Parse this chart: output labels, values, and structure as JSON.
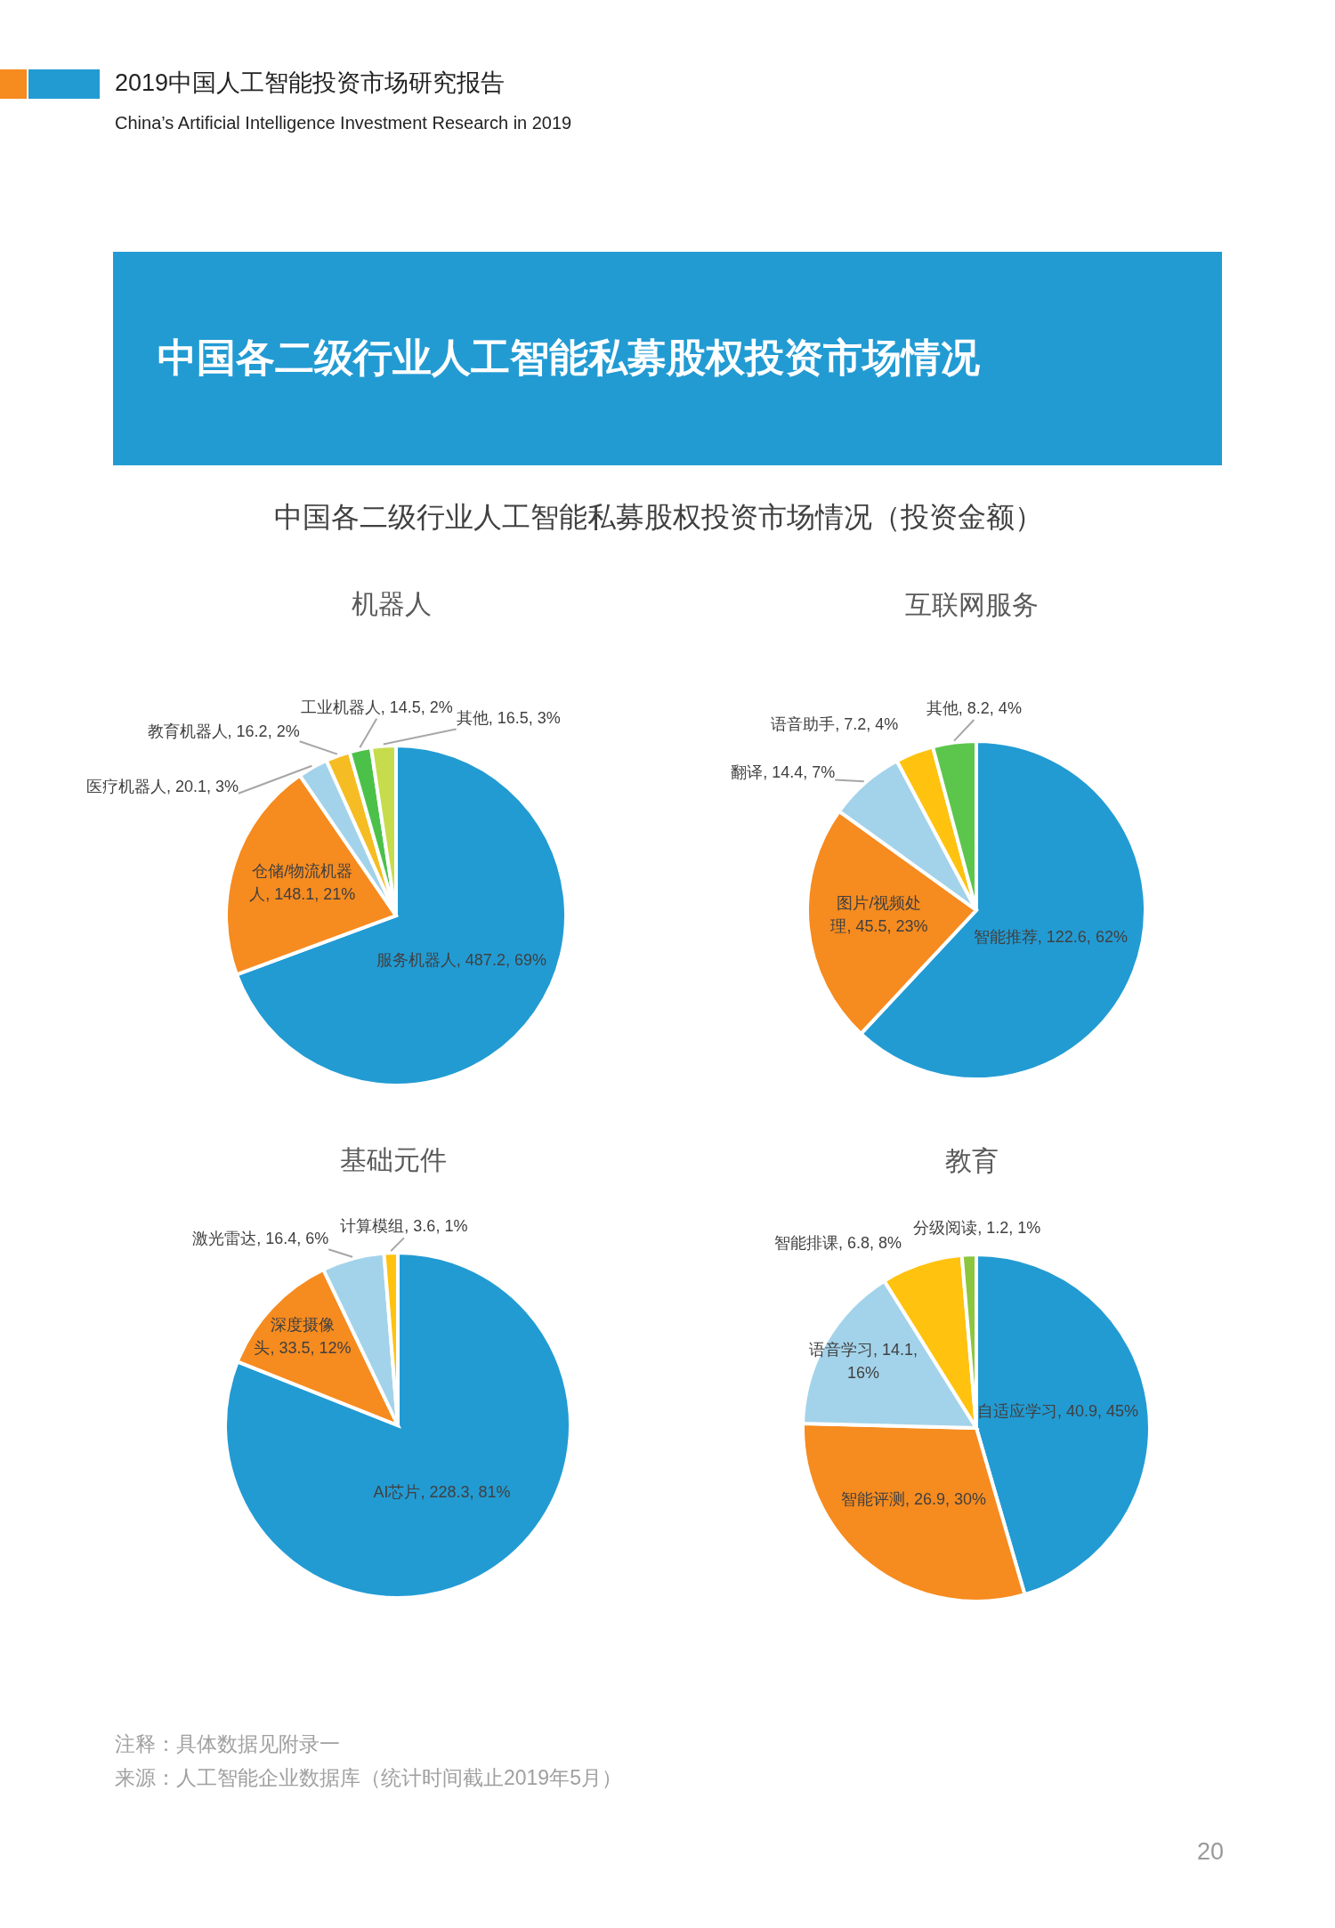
{
  "chart_data": [
    {
      "type": "other",
      "title": "中国各二级行业人工智能私募股权投资市场情况",
      "subtitle": "中国各二级行业人工智能私募股权投资市场情况（投资金额）",
      "annotations": [
        "2019中国人工智能投资市场研究报告",
        "China’s Artificial Intelligence Investment Research in 2019"
      ]
    },
    {
      "type": "pie",
      "title": "机器人",
      "categories": [
        "服务机器人",
        "仓储/物流机器人",
        "医疗机器人",
        "教育机器人",
        "工业机器人",
        "其他"
      ],
      "values": [
        487.2,
        148.1,
        20.1,
        16.2,
        14.5,
        16.5
      ],
      "colors": [
        "#229bd3",
        "#f68b1f",
        "#a3d3ea",
        "#f5bd23",
        "#4cc14a",
        "#c6dc4c"
      ],
      "value_labels": [
        "487.2, 69%",
        "148.1, 21%",
        "20.1, 3%",
        "16.2, 2%",
        "14.5, 2%",
        "16.5, 3%"
      ]
    },
    {
      "type": "pie",
      "title": "互联网服务",
      "categories": [
        "智能推荐",
        "图片/视频处理",
        "翻译",
        "语音助手",
        "其他"
      ],
      "values": [
        122.6,
        45.5,
        14.4,
        7.2,
        8.2
      ],
      "colors": [
        "#229bd3",
        "#f68b1f",
        "#a3d3ea",
        "#ffc20e",
        "#5cc64c"
      ],
      "value_labels": [
        "122.6, 62%",
        "45.5, 23%",
        "14.4, 7%",
        "7.2, 4%",
        "8.2, 4%"
      ]
    },
    {
      "type": "pie",
      "title": "基础元件",
      "categories": [
        "AI芯片",
        "深度摄像头",
        "激光雷达",
        "计算模组"
      ],
      "values": [
        228.3,
        33.5,
        16.4,
        3.6
      ],
      "colors": [
        "#229bd3",
        "#f68b1f",
        "#a3d3ea",
        "#ffc20e"
      ],
      "value_labels": [
        "228.3, 81%",
        "33.5, 12%",
        "16.4, 6%",
        "3.6, 1%"
      ]
    },
    {
      "type": "pie",
      "title": "教育",
      "categories": [
        "自适应学习",
        "智能评测",
        "语音学习",
        "智能排课",
        "分级阅读"
      ],
      "values": [
        40.9,
        26.9,
        14.1,
        6.8,
        1.2
      ],
      "colors": [
        "#229bd3",
        "#f68b1f",
        "#a3d3ea",
        "#ffc20e",
        "#8cc63f"
      ],
      "value_labels": [
        "40.9, 45%",
        "26.9, 30%",
        "14.1, 16%",
        "6.8, 8%",
        "1.2, 1%"
      ]
    },
    {
      "type": "other",
      "annotations": [
        "注释：具体数据见附录一",
        "来源：人工智能企业数据库（统计时间截止2019年5月）",
        "20"
      ]
    }
  ]
}
